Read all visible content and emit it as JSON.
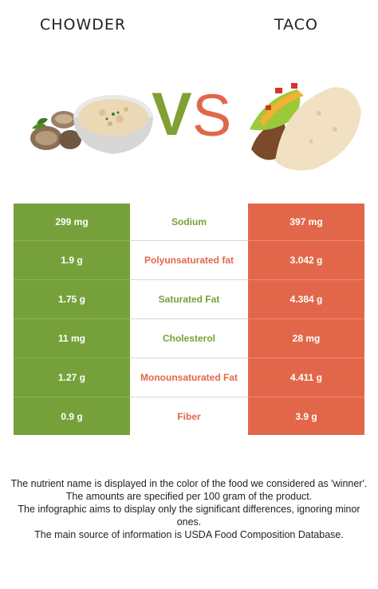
{
  "header": {
    "left_food": "CHOWDER",
    "right_food": "TACO",
    "vs_v": "V",
    "vs_s": "S"
  },
  "colors": {
    "left_winner": "#76a13a",
    "right_winner": "#e2674a"
  },
  "rows": [
    {
      "nutrient": "Sodium",
      "left": "299 mg",
      "right": "397 mg",
      "winner": "left"
    },
    {
      "nutrient": "Polyunsaturated fat",
      "left": "1.9 g",
      "right": "3.042 g",
      "winner": "right"
    },
    {
      "nutrient": "Saturated Fat",
      "left": "1.75 g",
      "right": "4.384 g",
      "winner": "left"
    },
    {
      "nutrient": "Cholesterol",
      "left": "11 mg",
      "right": "28 mg",
      "winner": "left"
    },
    {
      "nutrient": "Monounsaturated Fat",
      "left": "1.27 g",
      "right": "4.411 g",
      "winner": "right"
    },
    {
      "nutrient": "Fiber",
      "left": "0.9 g",
      "right": "3.9 g",
      "winner": "right"
    }
  ],
  "notes": [
    "The nutrient name is displayed in the color of the food we considered as 'winner'.",
    "The amounts are specified per 100 gram of the product.",
    "The infographic aims to display only the significant differences, ignoring minor ones.",
    "The main source of information is USDA Food Composition Database."
  ]
}
